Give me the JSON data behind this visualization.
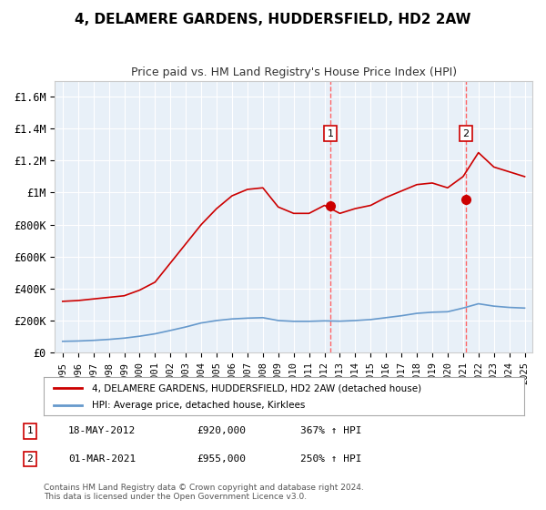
{
  "title": "4, DELAMERE GARDENS, HUDDERSFIELD, HD2 2AW",
  "subtitle": "Price paid vs. HM Land Registry's House Price Index (HPI)",
  "title_fontsize": 11,
  "subtitle_fontsize": 9,
  "background_color": "#e8f0f8",
  "plot_background": "#e8f0f8",
  "ylabel": "",
  "ylim": [
    0,
    1700000
  ],
  "yticks": [
    0,
    200000,
    400000,
    600000,
    800000,
    1000000,
    1200000,
    1400000,
    1600000
  ],
  "ytick_labels": [
    "£0",
    "£200K",
    "£400K",
    "£600K",
    "£800K",
    "£1M",
    "£1.2M",
    "£1.4M",
    "£1.6M"
  ],
  "xlim_start": 1994.5,
  "xlim_end": 2025.5,
  "xticks": [
    1995,
    1996,
    1997,
    1998,
    1999,
    2000,
    2001,
    2002,
    2003,
    2004,
    2005,
    2006,
    2007,
    2008,
    2009,
    2010,
    2011,
    2012,
    2013,
    2014,
    2015,
    2016,
    2017,
    2018,
    2019,
    2020,
    2021,
    2022,
    2023,
    2024,
    2025
  ],
  "grid_color": "#ffffff",
  "red_line_color": "#cc0000",
  "blue_line_color": "#6699cc",
  "dashed_line_color": "#ff6666",
  "sale1_x": 2012.38,
  "sale1_y": 920000,
  "sale2_x": 2021.17,
  "sale2_y": 955000,
  "sale1_label": "18-MAY-2012",
  "sale1_price": "£920,000",
  "sale1_hpi": "367% ↑ HPI",
  "sale2_label": "01-MAR-2021",
  "sale2_price": "£955,000",
  "sale2_hpi": "250% ↑ HPI",
  "legend_line1": "4, DELAMERE GARDENS, HUDDERSFIELD, HD2 2AW (detached house)",
  "legend_line2": "HPI: Average price, detached house, Kirklees",
  "footer": "Contains HM Land Registry data © Crown copyright and database right 2024.\nThis data is licensed under the Open Government Licence v3.0.",
  "red_hpi_x": [
    1995,
    1996,
    1997,
    1998,
    1999,
    2000,
    2001,
    2002,
    2003,
    2004,
    2005,
    2006,
    2007,
    2008,
    2009,
    2010,
    2011,
    2012,
    2013,
    2014,
    2015,
    2016,
    2017,
    2018,
    2019,
    2020,
    2021,
    2022,
    2023,
    2024,
    2025
  ],
  "red_hpi_y": [
    320000,
    325000,
    335000,
    345000,
    355000,
    390000,
    440000,
    560000,
    680000,
    800000,
    900000,
    980000,
    1020000,
    1030000,
    910000,
    870000,
    870000,
    920000,
    870000,
    900000,
    920000,
    970000,
    1010000,
    1050000,
    1060000,
    1030000,
    1100000,
    1250000,
    1160000,
    1130000,
    1100000
  ],
  "blue_hpi_x": [
    1995,
    1996,
    1997,
    1998,
    1999,
    2000,
    2001,
    2002,
    2003,
    2004,
    2005,
    2006,
    2007,
    2008,
    2009,
    2010,
    2011,
    2012,
    2013,
    2014,
    2015,
    2016,
    2017,
    2018,
    2019,
    2020,
    2021,
    2022,
    2023,
    2024,
    2025
  ],
  "blue_hpi_y": [
    70000,
    72000,
    76000,
    82000,
    90000,
    102000,
    117000,
    138000,
    160000,
    185000,
    200000,
    210000,
    215000,
    218000,
    200000,
    195000,
    195000,
    198000,
    196000,
    200000,
    206000,
    218000,
    230000,
    245000,
    252000,
    255000,
    278000,
    305000,
    290000,
    282000,
    278000
  ]
}
